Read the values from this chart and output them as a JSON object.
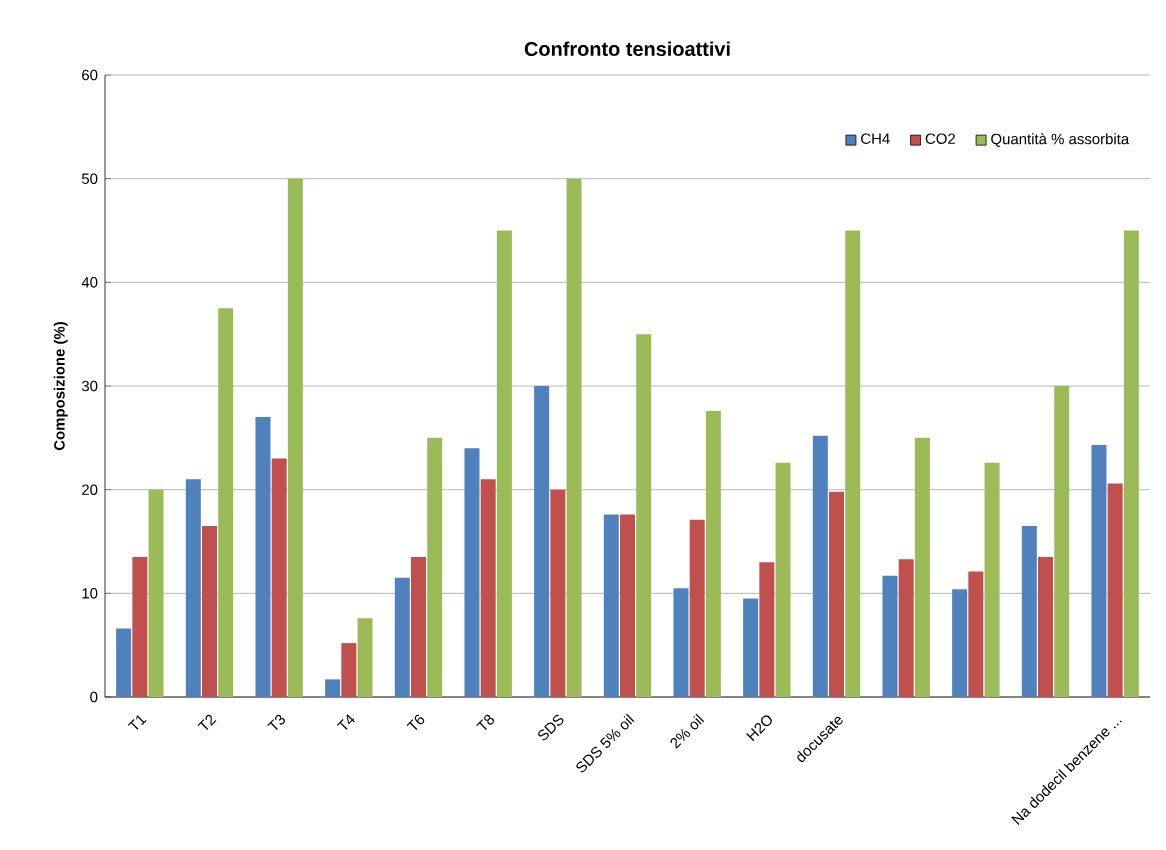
{
  "chart_data": {
    "type": "bar",
    "title": "Confronto tensioattivi",
    "ylabel": "Composizione (%)",
    "categories": [
      "T1",
      "T2",
      "T3",
      "T4",
      "T6",
      "T8",
      "SDS",
      "SDS 5% oil",
      "2% oil",
      "H2O",
      "docusate",
      null,
      null,
      null,
      "Na dodecil benzene ..."
    ],
    "series": [
      {
        "name": "CH4",
        "color": "#4f81bd",
        "values": [
          6.6,
          21,
          27,
          1.7,
          11.5,
          24,
          30,
          17.6,
          10.5,
          9.5,
          25.2,
          11.7,
          10.4,
          16.5,
          24.3
        ]
      },
      {
        "name": "CO2",
        "color": "#c0504d",
        "values": [
          13.5,
          16.5,
          23,
          5.2,
          13.5,
          21,
          20,
          17.6,
          17.1,
          13,
          19.8,
          13.3,
          12.1,
          13.5,
          20.6
        ]
      },
      {
        "name": "Quantità % assorbita",
        "color": "#9bbb59",
        "values": [
          20,
          37.5,
          50,
          7.6,
          25,
          45,
          50,
          35,
          27.6,
          22.6,
          45,
          25,
          22.6,
          30,
          45
        ]
      }
    ],
    "ylim": [
      0,
      60
    ],
    "yticks": [
      0,
      10,
      20,
      30,
      40,
      50,
      60
    ],
    "grid": "y",
    "legend": "top right"
  }
}
